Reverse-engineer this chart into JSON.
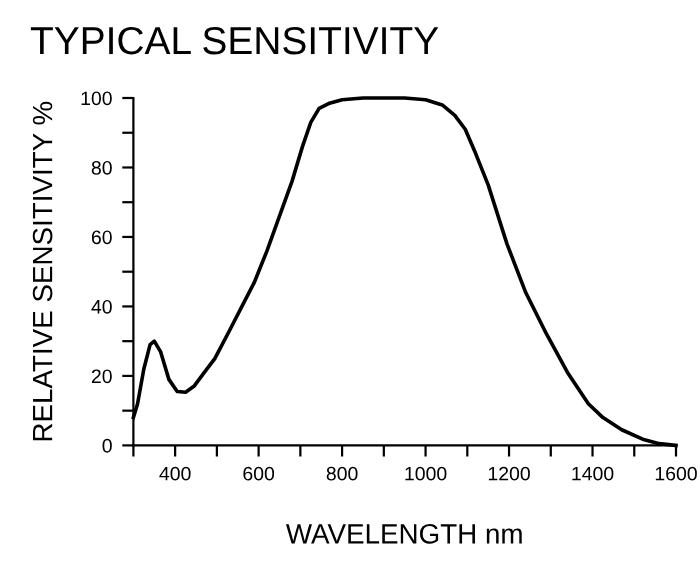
{
  "chart_data": {
    "type": "line",
    "title": "TYPICAL SENSITIVITY",
    "xlabel": "WAVELENGTH nm",
    "ylabel": "RELATIVE SENSITIVITY %",
    "x": [
      300,
      310,
      325,
      340,
      350,
      365,
      385,
      405,
      425,
      445,
      470,
      495,
      530,
      560,
      590,
      620,
      650,
      680,
      705,
      725,
      745,
      770,
      800,
      850,
      900,
      950,
      1000,
      1040,
      1070,
      1095,
      1120,
      1150,
      1195,
      1240,
      1290,
      1340,
      1390,
      1425,
      1470,
      1520,
      1560,
      1600
    ],
    "series": [
      {
        "color": "#000000",
        "values": [
          8,
          12,
          22,
          29,
          30,
          27,
          19,
          15.5,
          15.3,
          17,
          21,
          25,
          33,
          40,
          47,
          56,
          66,
          76,
          86,
          93,
          97,
          98.5,
          99.5,
          100,
          100,
          100,
          99.5,
          98,
          95,
          91,
          84,
          75,
          58,
          44,
          32,
          21,
          12,
          8,
          4.5,
          1.8,
          0.5,
          0
        ]
      }
    ],
    "xlim": [
      300,
      1600
    ],
    "ylim": [
      0,
      100
    ],
    "xticks": [
      {
        "value": 300,
        "label": null
      },
      400,
      {
        "value": 500,
        "label": null
      },
      600,
      {
        "value": 700,
        "label": null
      },
      800,
      {
        "value": 900,
        "label": null
      },
      1000,
      {
        "value": 1100,
        "label": null
      },
      1200,
      {
        "value": 1300,
        "label": null
      },
      1400,
      {
        "value": 1500,
        "label": null
      },
      1600
    ],
    "yticks": [
      0,
      {
        "value": 10,
        "label": null
      },
      20,
      {
        "value": 30,
        "label": null
      },
      40,
      {
        "value": 50,
        "label": null
      },
      60,
      {
        "value": 70,
        "label": null
      },
      80,
      {
        "value": 90,
        "label": null
      },
      100
    ],
    "grid": false,
    "legend": false,
    "marker": "none",
    "line_style": "solid"
  }
}
